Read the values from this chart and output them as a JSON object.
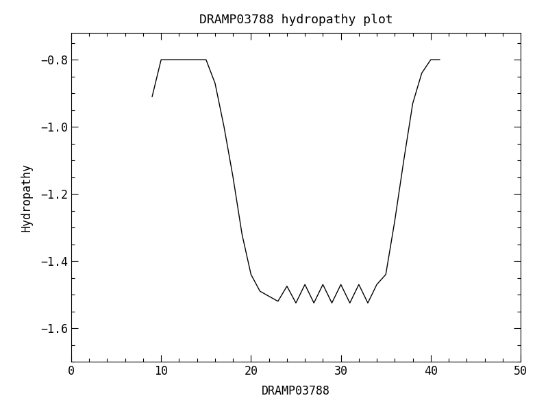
{
  "title": "DRAMP03788 hydropathy plot",
  "xlabel": "DRAMP03788",
  "ylabel": "Hydropathy",
  "xlim": [
    0,
    50
  ],
  "ylim": [
    -1.7,
    -0.72
  ],
  "yticks": [
    -1.6,
    -1.4,
    -1.2,
    -1.0,
    -0.8
  ],
  "xticks": [
    0,
    10,
    20,
    30,
    40,
    50
  ],
  "line_color": "#000000",
  "line_width": 1.0,
  "background_color": "#ffffff",
  "x": [
    9.0,
    10.0,
    11.0,
    12.0,
    13.0,
    14.0,
    15.0,
    16.0,
    17.0,
    18.0,
    19.0,
    20.0,
    21.0,
    22.0,
    23.0,
    24.0,
    25.0,
    26.0,
    27.0,
    28.0,
    29.0,
    30.0,
    31.0,
    32.0,
    33.0,
    34.0,
    35.0,
    36.0,
    37.0,
    38.0,
    39.0,
    40.0,
    41.0
  ],
  "y": [
    -0.91,
    -0.8,
    -0.8,
    -0.8,
    -0.8,
    -0.8,
    -0.8,
    -0.87,
    -1.0,
    -1.15,
    -1.32,
    -1.44,
    -1.49,
    -1.505,
    -1.52,
    -1.475,
    -1.525,
    -1.47,
    -1.525,
    -1.47,
    -1.525,
    -1.47,
    -1.525,
    -1.47,
    -1.525,
    -1.47,
    -1.44,
    -1.28,
    -1.1,
    -0.93,
    -0.84,
    -0.8,
    -0.8
  ]
}
